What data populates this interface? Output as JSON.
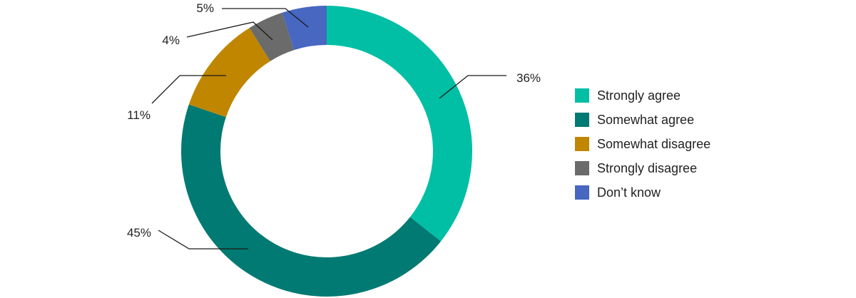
{
  "chart_data": {
    "type": "pie",
    "variant": "donut",
    "categories": [
      "Strongly agree",
      "Somewhat agree",
      "Somewhat disagree",
      "Strongly disagree",
      "Don’t know"
    ],
    "values": [
      36,
      45,
      11,
      4,
      5
    ],
    "labels": [
      "36%",
      "45%",
      "11%",
      "4%",
      "5%"
    ],
    "colors": [
      "#00bfa5",
      "#007a72",
      "#c08600",
      "#6b6b6b",
      "#4767c0"
    ],
    "legend_position": "right"
  }
}
